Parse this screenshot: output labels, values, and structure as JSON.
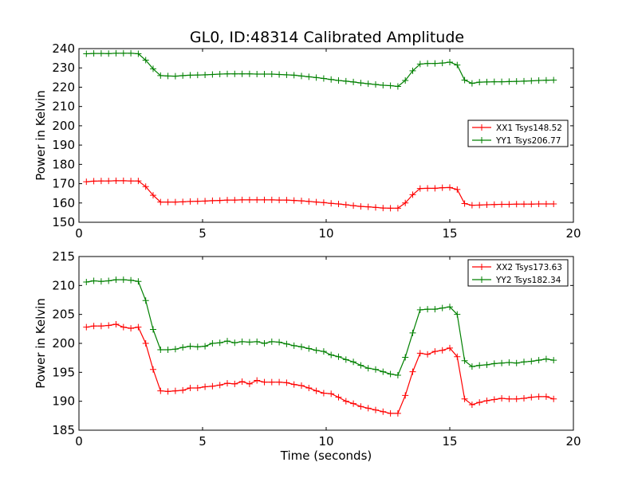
{
  "title": "GL0, ID:48314 Calibrated Amplitude",
  "chart_data": [
    {
      "type": "line",
      "title": "GL0, ID:48314 Calibrated Amplitude",
      "xlabel": "",
      "ylabel": "Power in Kelvin",
      "xlim": [
        0,
        20
      ],
      "ylim": [
        150,
        240
      ],
      "xticks": [
        0,
        5,
        10,
        15,
        20
      ],
      "yticks": [
        150,
        160,
        170,
        180,
        190,
        200,
        210,
        220,
        230,
        240
      ],
      "grid": false,
      "legend_position": "right",
      "series": [
        {
          "name": "XX1 Tsys148.52",
          "color": "#ff0000",
          "x": [
            0.3,
            0.6,
            0.9,
            1.2,
            1.5,
            1.8,
            2.1,
            2.4,
            2.7,
            3.0,
            3.3,
            3.6,
            3.9,
            4.2,
            4.5,
            4.8,
            5.1,
            5.4,
            5.7,
            6.0,
            6.3,
            6.6,
            6.9,
            7.2,
            7.5,
            7.8,
            8.1,
            8.4,
            8.7,
            9.0,
            9.3,
            9.6,
            9.9,
            10.2,
            10.5,
            10.8,
            11.1,
            11.4,
            11.7,
            12.0,
            12.3,
            12.6,
            12.9,
            13.2,
            13.5,
            13.8,
            14.1,
            14.4,
            14.7,
            15.0,
            15.3,
            15.6,
            15.9,
            16.2,
            16.5,
            16.8,
            17.1,
            17.4,
            17.7,
            18.0,
            18.3,
            18.6,
            18.9,
            19.2
          ],
          "y": [
            171,
            171.3,
            171.4,
            171.4,
            171.5,
            171.5,
            171.4,
            171.4,
            168.5,
            164.0,
            160.5,
            160.5,
            160.5,
            160.6,
            160.8,
            160.9,
            161.0,
            161.2,
            161.3,
            161.5,
            161.5,
            161.6,
            161.6,
            161.6,
            161.6,
            161.6,
            161.5,
            161.5,
            161.3,
            161.1,
            160.8,
            160.5,
            160.2,
            159.8,
            159.5,
            159.1,
            158.6,
            158.2,
            158.0,
            157.7,
            157.4,
            157.3,
            157.3,
            160.0,
            164.3,
            167.5,
            167.6,
            167.6,
            167.9,
            168.0,
            167.0,
            159.7,
            158.8,
            158.9,
            159.1,
            159.2,
            159.3,
            159.3,
            159.4,
            159.4,
            159.4,
            159.5,
            159.5,
            159.5
          ]
        },
        {
          "name": "YY1 Tsys206.77",
          "color": "#008000",
          "x": [
            0.3,
            0.6,
            0.9,
            1.2,
            1.5,
            1.8,
            2.1,
            2.4,
            2.7,
            3.0,
            3.3,
            3.6,
            3.9,
            4.2,
            4.5,
            4.8,
            5.1,
            5.4,
            5.7,
            6.0,
            6.3,
            6.6,
            6.9,
            7.2,
            7.5,
            7.8,
            8.1,
            8.4,
            8.7,
            9.0,
            9.3,
            9.6,
            9.9,
            10.2,
            10.5,
            10.8,
            11.1,
            11.4,
            11.7,
            12.0,
            12.3,
            12.6,
            12.9,
            13.2,
            13.5,
            13.8,
            14.1,
            14.4,
            14.7,
            15.0,
            15.3,
            15.6,
            15.9,
            16.2,
            16.5,
            16.8,
            17.1,
            17.4,
            17.7,
            18.0,
            18.3,
            18.6,
            18.9,
            19.2
          ],
          "y": [
            237.3,
            237.5,
            237.5,
            237.4,
            237.6,
            237.6,
            237.6,
            237.3,
            234.0,
            229.5,
            226.0,
            225.8,
            225.7,
            226.0,
            226.2,
            226.3,
            226.4,
            226.6,
            226.8,
            226.9,
            226.9,
            226.9,
            226.9,
            226.8,
            226.8,
            226.8,
            226.6,
            226.4,
            226.2,
            225.8,
            225.4,
            225.0,
            224.5,
            224.0,
            223.5,
            223.1,
            222.7,
            222.2,
            221.8,
            221.4,
            221.0,
            220.8,
            220.4,
            223.5,
            228.5,
            232.0,
            232.3,
            232.3,
            232.5,
            233.0,
            231.5,
            223.7,
            222.0,
            222.6,
            222.7,
            222.8,
            222.8,
            222.9,
            223.0,
            223.1,
            223.3,
            223.5,
            223.6,
            223.7
          ]
        }
      ]
    },
    {
      "type": "line",
      "title": "",
      "xlabel": "Time (seconds)",
      "ylabel": "Power in Kelvin",
      "xlim": [
        0,
        20
      ],
      "ylim": [
        185,
        215
      ],
      "xticks": [
        0,
        5,
        10,
        15,
        20
      ],
      "yticks": [
        185,
        190,
        195,
        200,
        205,
        210,
        215
      ],
      "grid": false,
      "legend_position": "top-right",
      "series": [
        {
          "name": "XX2 Tsys173.63",
          "color": "#ff0000",
          "x": [
            0.3,
            0.6,
            0.9,
            1.2,
            1.5,
            1.8,
            2.1,
            2.4,
            2.7,
            3.0,
            3.3,
            3.6,
            3.9,
            4.2,
            4.5,
            4.8,
            5.1,
            5.4,
            5.7,
            6.0,
            6.3,
            6.6,
            6.9,
            7.2,
            7.5,
            7.8,
            8.1,
            8.4,
            8.7,
            9.0,
            9.3,
            9.6,
            9.9,
            10.2,
            10.5,
            10.8,
            11.1,
            11.4,
            11.7,
            12.0,
            12.3,
            12.6,
            12.9,
            13.2,
            13.5,
            13.8,
            14.1,
            14.4,
            14.7,
            15.0,
            15.3,
            15.6,
            15.9,
            16.2,
            16.5,
            16.8,
            17.1,
            17.4,
            17.7,
            18.0,
            18.3,
            18.6,
            18.9,
            19.2
          ],
          "y": [
            202.8,
            203.0,
            203.0,
            203.1,
            203.3,
            202.8,
            202.6,
            202.8,
            200.0,
            195.5,
            191.8,
            191.7,
            191.8,
            191.9,
            192.3,
            192.3,
            192.5,
            192.6,
            192.8,
            193.1,
            193.0,
            193.4,
            193.0,
            193.6,
            193.3,
            193.3,
            193.3,
            193.2,
            192.9,
            192.7,
            192.3,
            191.8,
            191.4,
            191.3,
            190.7,
            190.0,
            189.6,
            189.1,
            188.8,
            188.5,
            188.2,
            187.9,
            187.9,
            191.0,
            195.1,
            198.3,
            198.1,
            198.6,
            198.8,
            199.2,
            197.7,
            190.4,
            189.4,
            189.8,
            190.1,
            190.3,
            190.5,
            190.4,
            190.4,
            190.5,
            190.7,
            190.8,
            190.8,
            190.4
          ]
        },
        {
          "name": "YY2 Tsys182.34",
          "color": "#008000",
          "x": [
            0.3,
            0.6,
            0.9,
            1.2,
            1.5,
            1.8,
            2.1,
            2.4,
            2.7,
            3.0,
            3.3,
            3.6,
            3.9,
            4.2,
            4.5,
            4.8,
            5.1,
            5.4,
            5.7,
            6.0,
            6.3,
            6.6,
            6.9,
            7.2,
            7.5,
            7.8,
            8.1,
            8.4,
            8.7,
            9.0,
            9.3,
            9.6,
            9.9,
            10.2,
            10.5,
            10.8,
            11.1,
            11.4,
            11.7,
            12.0,
            12.3,
            12.6,
            12.9,
            13.2,
            13.5,
            13.8,
            14.1,
            14.4,
            14.7,
            15.0,
            15.3,
            15.6,
            15.9,
            16.2,
            16.5,
            16.8,
            17.1,
            17.4,
            17.7,
            18.0,
            18.3,
            18.6,
            18.9,
            19.2
          ],
          "y": [
            210.6,
            210.8,
            210.7,
            210.8,
            211.0,
            211.0,
            210.9,
            210.7,
            207.4,
            202.4,
            198.9,
            198.9,
            199.0,
            199.3,
            199.5,
            199.4,
            199.5,
            200.0,
            200.1,
            200.4,
            200.1,
            200.3,
            200.2,
            200.3,
            200.0,
            200.3,
            200.2,
            199.9,
            199.6,
            199.4,
            199.1,
            198.8,
            198.6,
            198.0,
            197.7,
            197.2,
            196.8,
            196.2,
            195.7,
            195.5,
            195.1,
            194.7,
            194.5,
            197.6,
            201.8,
            205.8,
            205.9,
            205.9,
            206.1,
            206.3,
            205.0,
            197.0,
            196.0,
            196.2,
            196.3,
            196.5,
            196.6,
            196.7,
            196.6,
            196.8,
            196.9,
            197.1,
            197.3,
            197.1
          ]
        }
      ]
    }
  ]
}
